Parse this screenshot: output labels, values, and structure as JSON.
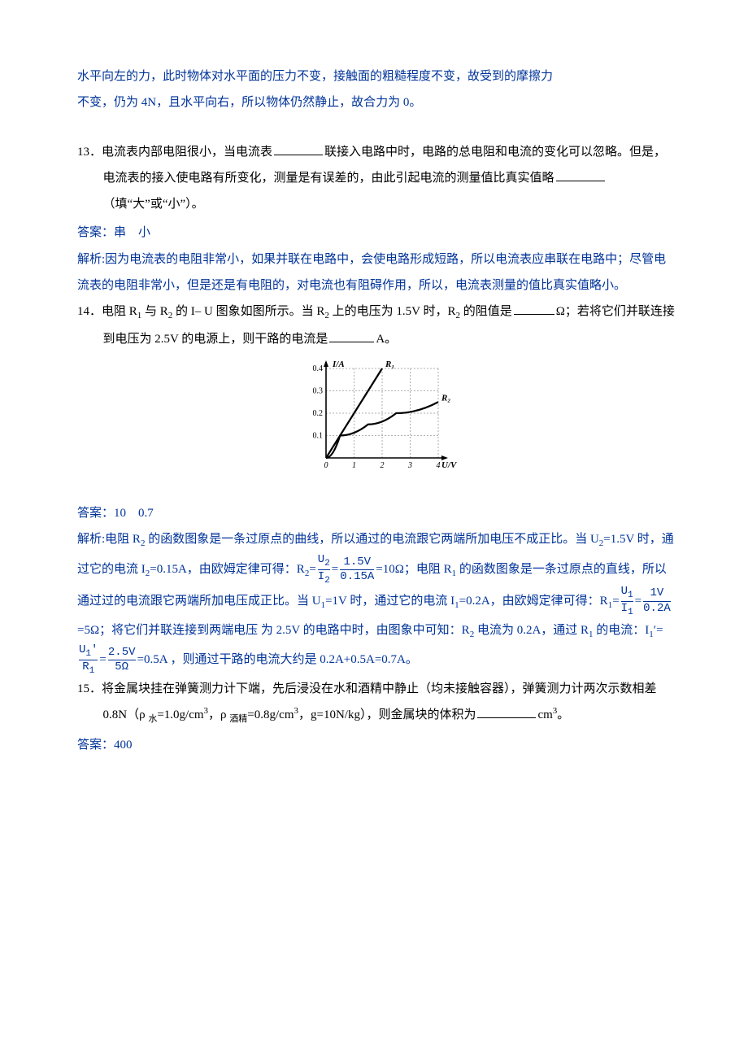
{
  "q12_tail": {
    "l1": "水平向左的力，此时物体对水平面的压力不变，接触面的粗糙程度不变，故受到的摩擦力",
    "l2": "不变，仍为 4N，且水平向右，所以物体仍然静止，故合力为 0。"
  },
  "q13": {
    "num": "13．",
    "body_a": "电流表内部电阻很小，当电流表",
    "body_b": "联接入电路中时，电路的总电阻和电流的变化可以忽略。但是，电流表的接入使电路有所变化，测量是有误差的，由此引起电流的测量值比真实值略",
    "body_c": "（填“大”或“小”）。",
    "ans_label": "答案：串　小",
    "expl": "解析:因为电流表的电阻非常小，如果并联在电路中，会使电路形成短路，所以电流表应串联在电路中；尽管电流表的电阻非常小，但是还是有电阻的，对电流也有阻碍作用，所以，电流表测量的值比真实值略小。"
  },
  "q14": {
    "num": "14．",
    "body_a": "电阻 R",
    "body_b": " 与 R",
    "body_c": " 的 I– U 图象如图所示。当 R",
    "body_d": " 上的电压为 1.5V 时，R",
    "body_e": " 的阻值是",
    "body_f": "Ω；若将它们并联连接到电压为 2.5V 的电源上，则干路的电流是",
    "body_g": "A。",
    "ans_label": "答案：10　0.7",
    "expl_a": "解析:电阻 R",
    "expl_b": " 的函数图象是一条过原点的曲线，所以通过的电流跟它两端所加电压不成正比。当 U",
    "expl_c": "=1.5V 时，通过它的电流 I",
    "expl_d": "=0.15A，由欧姆定律可得：R",
    "expl_e": "=",
    "frac1_num": "U",
    "frac1_num_sub": "2",
    "frac1_den": "I",
    "frac1_den_sub": "2",
    "eq1": "=",
    "frac2_num": "1.5V",
    "frac2_den": "0.15A",
    "eq2": "=10Ω；电阻 R",
    "expl_f": "的函数图象是一条过原点的直线，所以通过过的电流跟它两端所加电压成正比。当 U",
    "expl_g": "=1V 时，通过它的电流 I",
    "expl_h": "=0.2A，由欧姆定律可得：R",
    "frac3_num": "U",
    "frac3_den": "I",
    "frac4_num": "1V",
    "frac4_den": "0.2A",
    "eq3": "=5Ω；将它们并联连接到两端电压",
    "expl_i": "为 2.5V 的电路中时，由图象中可知：R",
    "expl_j": " 电流为 0.2A，通过 R",
    "expl_k": " 的电流：I",
    "expl_l": "′=",
    "frac5_num_a": "U",
    "frac5_num_b": "′",
    "frac5_den": "R",
    "frac6_num": "2.5V",
    "frac6_den": "5Ω",
    "eq4": "=0.5A",
    "expl_m": "，则通过干路的电流大约是 0.2A+0.5A=0.7A。",
    "graph": {
      "ylabel": "I/A",
      "xlabel": "U/V",
      "series": [
        {
          "name": "R₁",
          "points": [
            [
              0,
              0
            ],
            [
              1,
              0.2
            ],
            [
              2,
              0.4
            ]
          ],
          "color": "#000"
        },
        {
          "name": "R₂",
          "points": [
            [
              0,
              0
            ],
            [
              0.5,
              0.1
            ],
            [
              1.5,
              0.15
            ],
            [
              2.5,
              0.2
            ],
            [
              4,
              0.25
            ]
          ],
          "color": "#000"
        }
      ],
      "xlim": [
        0,
        4
      ],
      "xticks": [
        0,
        1,
        2,
        3,
        4
      ],
      "ylim": [
        0,
        0.4
      ],
      "yticks": [
        0,
        0.1,
        0.2,
        0.3,
        0.4
      ],
      "grid_color": "#999",
      "tick_fontsize": 10,
      "line_width": 2.2
    }
  },
  "q15": {
    "num": "15．",
    "body_a": "将金属块挂在弹簧测力计下端，先后浸没在水和酒精中静止（均未接触容器），弹簧测力计两次示数相差 0.8N（ρ ",
    "body_sub1": "水",
    "body_b": "=1.0g/cm",
    "body_c": "，ρ ",
    "body_sub2": "酒精",
    "body_d": "=0.8g/cm",
    "body_e": "，g=10N/kg），则金属块的体积为",
    "body_f": "cm",
    "body_g": "。",
    "ans_label": "答案：400"
  }
}
